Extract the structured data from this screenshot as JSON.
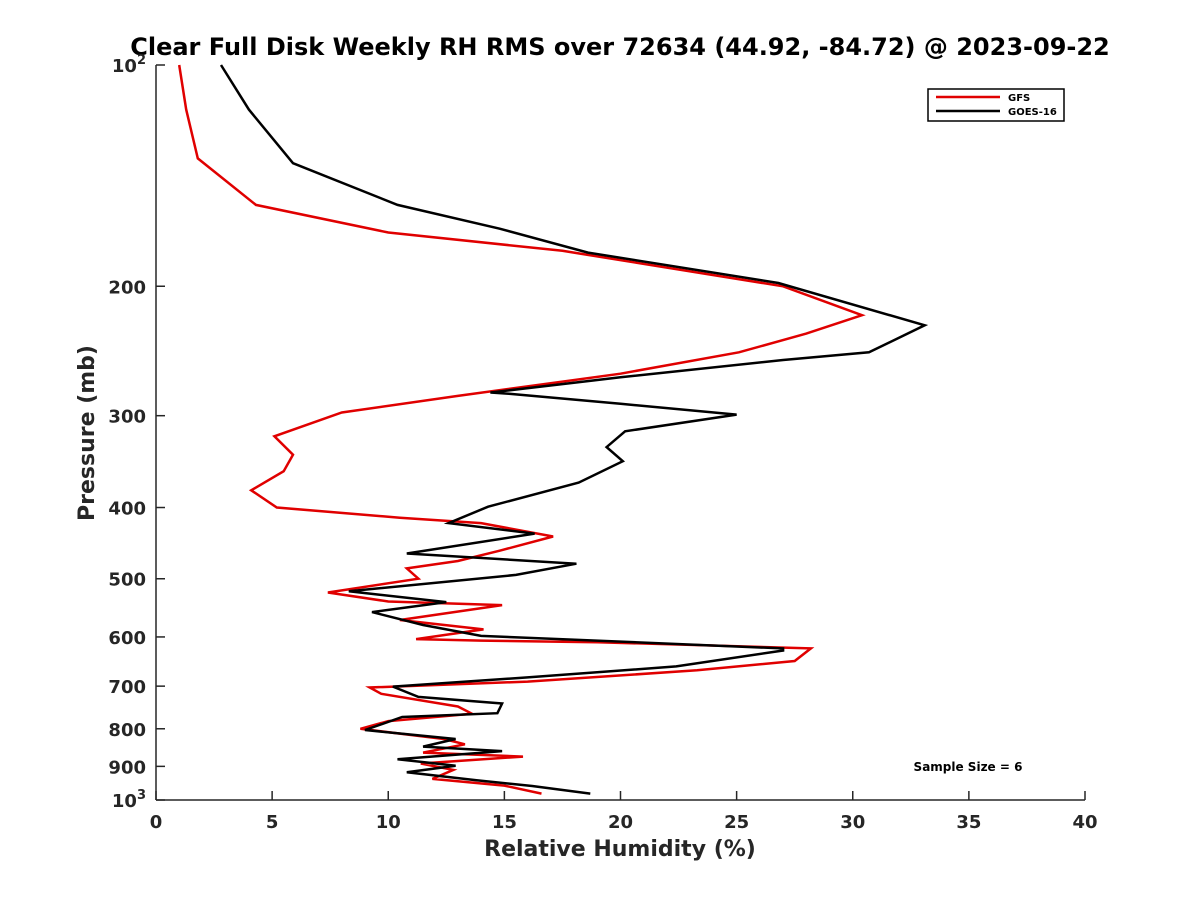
{
  "chart_data": {
    "type": "line",
    "title": "Clear Full Disk Weekly RH RMS over 72634 (44.92, -84.72) @ 2023-09-22",
    "xlabel": "Relative Humidity (%)",
    "ylabel": "Pressure (mb)",
    "xlim": [
      0,
      40
    ],
    "ylim": [
      100,
      1000
    ],
    "yscale": "log",
    "y_reversed": true,
    "x_ticks": [
      {
        "value": 0,
        "label": "0"
      },
      {
        "value": 5,
        "label": "5"
      },
      {
        "value": 10,
        "label": "10"
      },
      {
        "value": 15,
        "label": "15"
      },
      {
        "value": 20,
        "label": "20"
      },
      {
        "value": 25,
        "label": "25"
      },
      {
        "value": 30,
        "label": "30"
      },
      {
        "value": 35,
        "label": "35"
      },
      {
        "value": 40,
        "label": "40"
      }
    ],
    "y_ticks": [
      {
        "value": 100,
        "label": "10",
        "sup": "2"
      },
      {
        "value": 200,
        "label": "200",
        "sup": ""
      },
      {
        "value": 300,
        "label": "300",
        "sup": ""
      },
      {
        "value": 400,
        "label": "400",
        "sup": ""
      },
      {
        "value": 500,
        "label": "500",
        "sup": ""
      },
      {
        "value": 600,
        "label": "600",
        "sup": ""
      },
      {
        "value": 700,
        "label": "700",
        "sup": ""
      },
      {
        "value": 800,
        "label": "800",
        "sup": ""
      },
      {
        "value": 900,
        "label": "900",
        "sup": ""
      },
      {
        "value": 1000,
        "label": "10",
        "sup": "3"
      }
    ],
    "legend_position": "top-right",
    "grid": false,
    "annotation": "Sample Size = 6",
    "series": [
      {
        "name": "GFS",
        "color": "#e00000",
        "points": [
          [
            1.0,
            100
          ],
          [
            1.3,
            115
          ],
          [
            1.8,
            134
          ],
          [
            4.3,
            155
          ],
          [
            10,
            169
          ],
          [
            17.5,
            179
          ],
          [
            27,
            200
          ],
          [
            30.4,
            219
          ],
          [
            28,
            232
          ],
          [
            25.1,
            246
          ],
          [
            20,
            263
          ],
          [
            13,
            282
          ],
          [
            8,
            297
          ],
          [
            5.1,
            320
          ],
          [
            5.9,
            339
          ],
          [
            5.5,
            357
          ],
          [
            4.1,
            379
          ],
          [
            5.2,
            400
          ],
          [
            10.5,
            413
          ],
          [
            14,
            420
          ],
          [
            17.1,
            438
          ],
          [
            14.8,
            458
          ],
          [
            13,
            473
          ],
          [
            10.8,
            484
          ],
          [
            11.3,
            500
          ],
          [
            7.4,
            522
          ],
          [
            10,
            537
          ],
          [
            14.9,
            543
          ],
          [
            10.5,
            569
          ],
          [
            14.1,
            586
          ],
          [
            11.2,
            604
          ],
          [
            14,
            607
          ],
          [
            19,
            610
          ],
          [
            28.2,
            622
          ],
          [
            27.5,
            647
          ],
          [
            23.3,
            666
          ],
          [
            16,
            690
          ],
          [
            9.2,
            703
          ],
          [
            9.7,
            717
          ],
          [
            13.0,
            746
          ],
          [
            13.6,
            763
          ],
          [
            10.0,
            781
          ],
          [
            8.8,
            800
          ],
          [
            12.4,
            826
          ],
          [
            13.3,
            840
          ],
          [
            11.5,
            862
          ],
          [
            15.8,
            873
          ],
          [
            11.4,
            892
          ],
          [
            12.8,
            910
          ],
          [
            11.9,
            936
          ],
          [
            15.0,
            956
          ],
          [
            16.6,
            980
          ]
        ]
      },
      {
        "name": "GOES-16",
        "color": "#000000",
        "points": [
          [
            2.8,
            100
          ],
          [
            4.0,
            115
          ],
          [
            5.9,
            136
          ],
          [
            10.4,
            155
          ],
          [
            14.8,
            167
          ],
          [
            18.6,
            180
          ],
          [
            26.8,
            198
          ],
          [
            33.1,
            226
          ],
          [
            30.7,
            246
          ],
          [
            27,
            252
          ],
          [
            20,
            266
          ],
          [
            14.4,
            279
          ],
          [
            15.2,
            280
          ],
          [
            20,
            289
          ],
          [
            25,
            299
          ],
          [
            20.2,
            315
          ],
          [
            19.4,
            331
          ],
          [
            20.1,
            346
          ],
          [
            18.2,
            370
          ],
          [
            14.3,
            399
          ],
          [
            12.6,
            420
          ],
          [
            16.3,
            434
          ],
          [
            10.8,
            462
          ],
          [
            18.1,
            477
          ],
          [
            15.5,
            494
          ],
          [
            8.3,
            520
          ],
          [
            12.5,
            538
          ],
          [
            9.3,
            555
          ],
          [
            11.5,
            578
          ],
          [
            14.0,
            598
          ],
          [
            27,
            622
          ],
          [
            27,
            626
          ],
          [
            22.4,
            658
          ],
          [
            16,
            681
          ],
          [
            10.2,
            701
          ],
          [
            11.3,
            724
          ],
          [
            14.9,
            739
          ],
          [
            14.7,
            762
          ],
          [
            10.6,
            771
          ],
          [
            9.0,
            803
          ],
          [
            12.9,
            826
          ],
          [
            11.5,
            846
          ],
          [
            14.9,
            858
          ],
          [
            10.4,
            880
          ],
          [
            12.9,
            898
          ],
          [
            10.8,
            917
          ],
          [
            13.8,
            940
          ],
          [
            16.2,
            957
          ],
          [
            18.7,
            980
          ]
        ]
      }
    ]
  }
}
